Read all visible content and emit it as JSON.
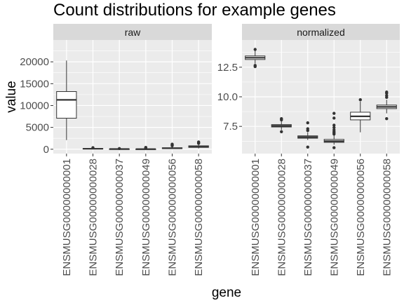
{
  "chart_data": {
    "type": "box",
    "title": "Count distributions for example genes",
    "xlabel": "gene",
    "ylabel": "value",
    "genes": [
      "ENSMUSG00000000001",
      "ENSMUSG00000000028",
      "ENSMUSG00000000037",
      "ENSMUSG00000000049",
      "ENSMUSG00000000056",
      "ENSMUSG00000000058"
    ],
    "panels": [
      {
        "strip": "raw",
        "ylim": [
          -1000,
          25000
        ],
        "yticks": [
          0,
          5000,
          10000,
          15000,
          20000
        ],
        "ytick_labels": [
          "0",
          "5000",
          "10000",
          "15000",
          "20000"
        ],
        "boxes": [
          {
            "q1": 7100,
            "median": 11300,
            "q3": 13200,
            "lo": 2100,
            "hi": 20300,
            "outliers": []
          },
          {
            "q1": 60,
            "median": 110,
            "q3": 170,
            "lo": 20,
            "hi": 300,
            "outliers": [
              350
            ]
          },
          {
            "q1": 20,
            "median": 40,
            "q3": 70,
            "lo": 0,
            "hi": 130,
            "outliers": [
              160
            ]
          },
          {
            "q1": 10,
            "median": 25,
            "q3": 50,
            "lo": 0,
            "hi": 100,
            "outliers": [
              200,
              300,
              420
            ]
          },
          {
            "q1": 150,
            "median": 230,
            "q3": 330,
            "lo": 40,
            "hi": 600,
            "outliers": [
              800,
              1000,
              1150
            ]
          },
          {
            "q1": 420,
            "median": 560,
            "q3": 780,
            "lo": 180,
            "hi": 1150,
            "outliers": [
              1350,
              1500,
              1650
            ]
          }
        ]
      },
      {
        "strip": "normalized",
        "ylim": [
          5.2,
          14.8
        ],
        "yticks": [
          7.5,
          10.0,
          12.5
        ],
        "ytick_labels": [
          "7.5",
          "10.0",
          "12.5"
        ],
        "boxes": [
          {
            "q1": 13.15,
            "median": 13.3,
            "q3": 13.45,
            "lo": 12.8,
            "hi": 13.9,
            "outliers": [
              12.55,
              12.65,
              14.0
            ]
          },
          {
            "q1": 7.45,
            "median": 7.55,
            "q3": 7.65,
            "lo": 7.2,
            "hi": 7.95,
            "outliers": [
              7.05,
              8.05,
              8.15
            ]
          },
          {
            "q1": 6.5,
            "median": 6.6,
            "q3": 6.7,
            "lo": 6.35,
            "hi": 7.0,
            "outliers": [
              5.75,
              7.15,
              7.3,
              7.8
            ]
          },
          {
            "q1": 6.15,
            "median": 6.25,
            "q3": 6.4,
            "lo": 5.95,
            "hi": 6.75,
            "outliers": [
              5.7,
              6.85,
              6.95,
              7.05,
              7.2,
              7.4,
              7.6,
              8.2,
              8.6
            ]
          },
          {
            "q1": 8.05,
            "median": 8.35,
            "q3": 8.7,
            "lo": 7.0,
            "hi": 9.6,
            "outliers": [
              9.75
            ]
          },
          {
            "q1": 9.0,
            "median": 9.15,
            "q3": 9.3,
            "lo": 8.6,
            "hi": 9.75,
            "outliers": [
              8.15,
              9.95,
              10.1,
              10.3,
              10.4
            ]
          }
        ]
      }
    ],
    "colors": {
      "panel_bg": "#ebebeb",
      "strip_bg": "#d9d9d9",
      "grid": "#ffffff",
      "box_fill": "#ffffff",
      "box_stroke": "#333333",
      "tick_text": "#4d4d4d"
    },
    "grid": true,
    "legend": "none"
  }
}
